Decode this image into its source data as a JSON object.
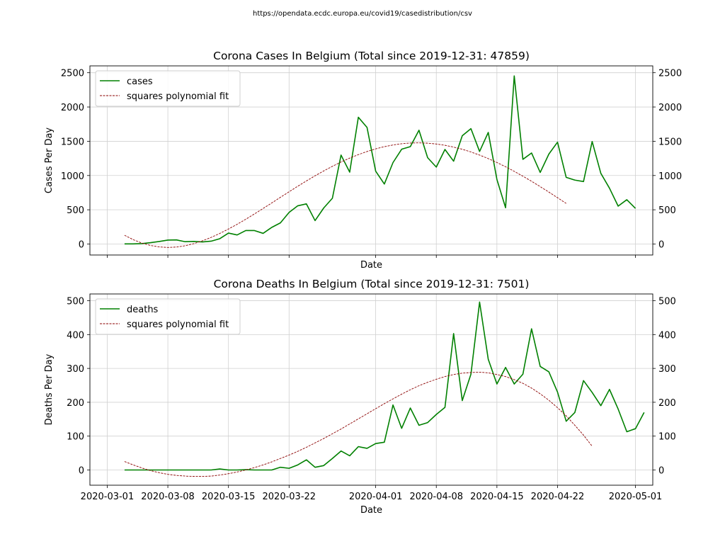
{
  "source_text": "https://opendata.ecdc.europa.eu/covid19/casedistribution/csv",
  "colors": {
    "series": "#008000",
    "fit": "#8b0000",
    "grid": "#d0d0d0",
    "axis": "#000000"
  },
  "chart_data": [
    {
      "type": "line",
      "title": "Corona Cases In Belgium (Total since 2019-12-31: 47859)",
      "xlabel": "Date",
      "ylabel": "Cases Per Day",
      "ylim": [
        -160,
        2600
      ],
      "yticks": [
        0,
        500,
        1000,
        1500,
        2000,
        2500
      ],
      "xlim": [
        "2020-02-28",
        "2020-05-03"
      ],
      "show_xtick_labels": false,
      "grid": true,
      "legend": "top-left",
      "x_start": "2020-03-03",
      "series": [
        {
          "name": "cases",
          "kind": "data",
          "values": [
            2,
            2,
            6,
            20,
            37,
            58,
            60,
            34,
            38,
            31,
            42,
            78,
            160,
            133,
            197,
            197,
            156,
            243,
            309,
            462,
            558,
            586,
            342,
            526,
            668,
            1298,
            1049,
            1850,
            1702,
            1063,
            876,
            1189,
            1384,
            1422,
            1661,
            1260,
            1123,
            1380,
            1209,
            1580,
            1684,
            1351,
            1629,
            942,
            530,
            2454,
            1236,
            1329,
            1045,
            1313,
            1487,
            973,
            933,
            912,
            1496,
            1032,
            815,
            553,
            647,
            520
          ]
        },
        {
          "name": "squares polynomial fit",
          "kind": "fit",
          "values": [
            128,
            64,
            14,
            -21,
            -42,
            -50,
            -44,
            -25,
            6,
            47,
            97,
            155,
            219,
            288,
            362,
            439,
            519,
            600,
            682,
            763,
            843,
            921,
            996,
            1067,
            1134,
            1197,
            1254,
            1305,
            1350,
            1389,
            1421,
            1446,
            1464,
            1474,
            1477,
            1472,
            1460,
            1441,
            1415,
            1383,
            1344,
            1298,
            1247,
            1190,
            1128,
            1061,
            990,
            916,
            838,
            758,
            676,
            593
          ]
        }
      ]
    },
    {
      "type": "line",
      "title": "Corona Deaths In Belgium (Total since 2019-12-31: 7501)",
      "xlabel": "Date",
      "ylabel": "Deaths Per Day",
      "ylim": [
        -45,
        520
      ],
      "yticks": [
        0,
        100,
        200,
        300,
        400,
        500
      ],
      "xlim": [
        "2020-02-28",
        "2020-05-03"
      ],
      "xticks": [
        "2020-03-01",
        "2020-03-08",
        "2020-03-15",
        "2020-03-22",
        "2020-04-01",
        "2020-04-08",
        "2020-04-15",
        "2020-04-22",
        "2020-05-01"
      ],
      "show_xtick_labels": true,
      "grid": true,
      "legend": "top-left",
      "x_start": "2020-03-03",
      "series": [
        {
          "name": "deaths",
          "kind": "data",
          "values": [
            0,
            0,
            0,
            0,
            0,
            0,
            0,
            0,
            0,
            0,
            0,
            3,
            0,
            0,
            1,
            0,
            0,
            0,
            8,
            5,
            15,
            30,
            8,
            13,
            34,
            56,
            42,
            69,
            64,
            78,
            82,
            192,
            123,
            183,
            132,
            140,
            164,
            185,
            403,
            205,
            283,
            496,
            327,
            254,
            303,
            254,
            283,
            417,
            306,
            290,
            230,
            144,
            170,
            264,
            229,
            190,
            238,
            180,
            113,
            122,
            170
          ]
        },
        {
          "name": "squares polynomial fit",
          "kind": "fit",
          "values": [
            25,
            15,
            6,
            -2,
            -8,
            -13,
            -16,
            -18,
            -19,
            -19,
            -18,
            -15,
            -11,
            -6,
            0,
            7,
            15,
            24,
            34,
            44,
            55,
            67,
            80,
            93,
            107,
            121,
            136,
            151,
            166,
            181,
            196,
            210,
            224,
            237,
            249,
            259,
            268,
            276,
            282,
            286,
            288,
            289,
            287,
            282,
            276,
            267,
            256,
            242,
            225,
            206,
            184,
            160,
            132,
            103,
            70
          ]
        }
      ]
    }
  ]
}
